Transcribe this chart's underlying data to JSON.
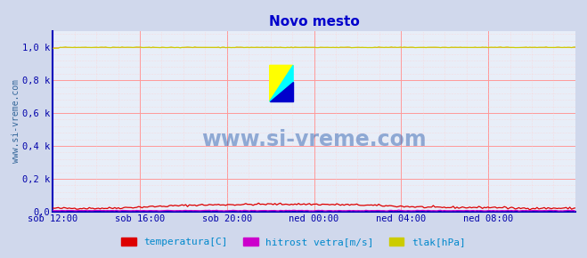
{
  "title": "Novo mesto",
  "title_color": "#0000cc",
  "background_color": "#d0d8ec",
  "plot_bg_color": "#e8eef8",
  "ylabel_text": "www.si-vreme.com",
  "watermark": "www.si-vreme.com",
  "ylim": [
    0.0,
    1.1
  ],
  "yticks": [
    0.0,
    0.2,
    0.4,
    0.6,
    0.8,
    1.0
  ],
  "ytick_labels": [
    "0,0",
    "0,2 k",
    "0,4 k",
    "0,6 k",
    "0,8 k",
    "1,0 k"
  ],
  "xtick_labels": [
    "sob 12:00",
    "sob 16:00",
    "sob 20:00",
    "ned 00:00",
    "ned 04:00",
    "ned 08:00"
  ],
  "n_points": 288,
  "temp_color": "#dd0000",
  "wind_color": "#cc00cc",
  "pressure_color": "#cccc00",
  "grid_major_color": "#ff9999",
  "grid_minor_color": "#ffcccc",
  "border_color": "#0000bb",
  "legend_text_color": "#0088cc",
  "legend": [
    {
      "label": "temperatura[C]",
      "color": "#dd0000"
    },
    {
      "label": "hitrost vetra[m/s]",
      "color": "#cc00cc"
    },
    {
      "label": "tlak[hPa]",
      "color": "#cccc00"
    }
  ],
  "figsize": [
    6.59,
    2.9
  ],
  "dpi": 100
}
